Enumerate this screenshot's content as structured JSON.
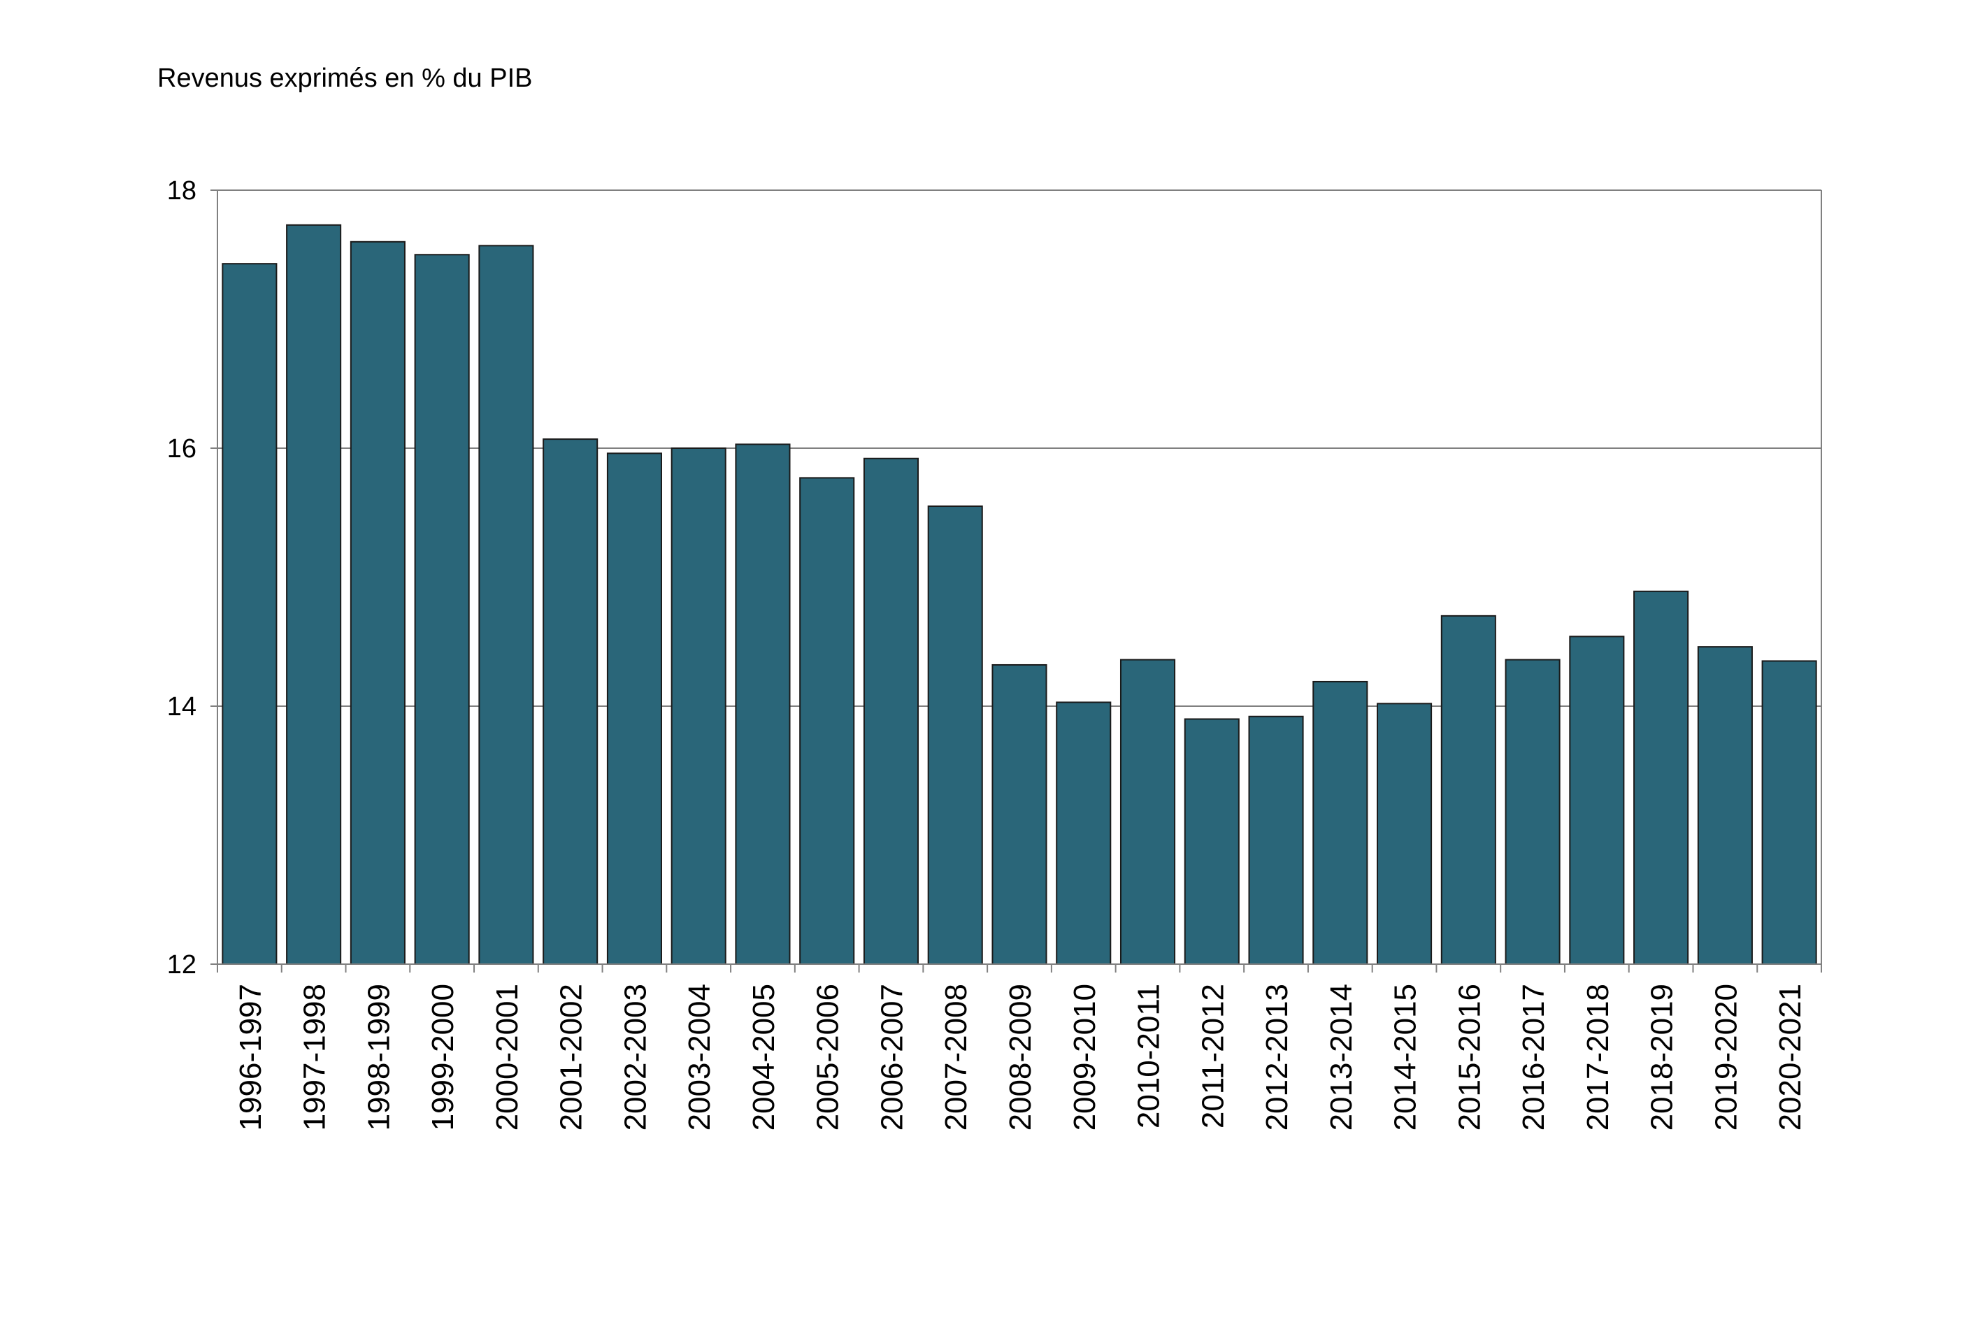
{
  "chart_data": {
    "type": "bar",
    "title": "",
    "xlabel": "",
    "ylabel": "Revenus exprimés en % du PIB",
    "ylim": [
      12,
      18
    ],
    "yticks": [
      12,
      14,
      16,
      18
    ],
    "grid": "horizontal",
    "legend": "none",
    "categories": [
      "1996-1997",
      "1997-1998",
      "1998-1999",
      "1999-2000",
      "2000-2001",
      "2001-2002",
      "2002-2003",
      "2003-2004",
      "2004-2005",
      "2005-2006",
      "2006-2007",
      "2007-2008",
      "2008-2009",
      "2009-2010",
      "2010-2011",
      "2011-2012",
      "2012-2013",
      "2013-2014",
      "2014-2015",
      "2015-2016",
      "2016-2017",
      "2017-2018",
      "2018-2019",
      "2019-2020",
      "2020-2021"
    ],
    "values": [
      17.43,
      17.73,
      17.6,
      17.5,
      17.57,
      16.07,
      15.96,
      16.0,
      16.03,
      15.77,
      15.92,
      15.55,
      14.32,
      14.03,
      14.36,
      13.9,
      13.92,
      14.19,
      14.02,
      14.7,
      14.36,
      14.54,
      14.89,
      14.46,
      14.35
    ],
    "colors": {
      "bar_fill": "#2a6679",
      "bar_stroke": "#1a1a1a",
      "grid": "#808080",
      "axis": "#808080"
    }
  }
}
